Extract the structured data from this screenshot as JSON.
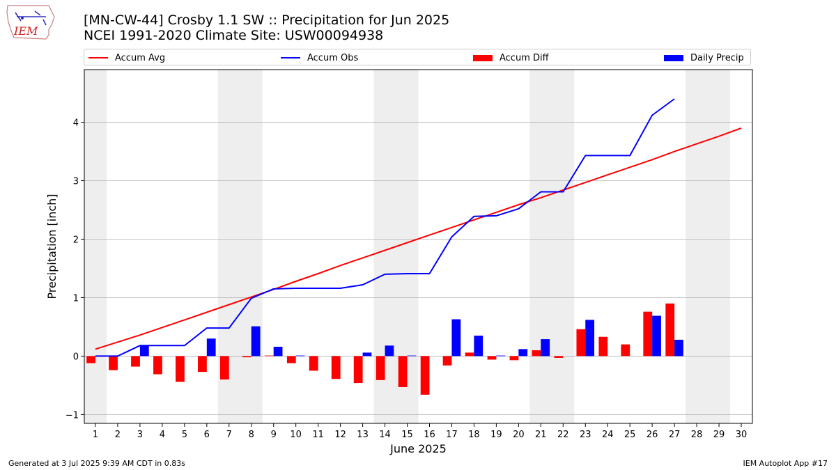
{
  "header": {
    "logo_text": "IEM",
    "title_line1": "[MN-CW-44] Crosby 1.1 SW :: Precipitation for Jun 2025",
    "title_line2": "NCEI 1991-2020 Climate Site: USW00094938"
  },
  "footer": {
    "generated": "Generated at 3 Jul 2025 9:39 AM CDT in 0.83s",
    "app": "IEM Autoplot App #17"
  },
  "colors": {
    "accum_avg": "#ff0000",
    "accum_obs": "#0000ff",
    "accum_diff": "#ff0000",
    "daily_precip": "#0000ff",
    "weekend_band": "#eeeeee",
    "grid": "#b0b0b0"
  },
  "chart_data": {
    "type": "bar",
    "title": "[MN-CW-44] Crosby 1.1 SW :: Precipitation for Jun 2025",
    "subtitle": "NCEI 1991-2020 Climate Site: USW00094938",
    "xlabel": "June 2025",
    "ylabel": "Precipitation [inch]",
    "xlim": [
      0.5,
      30.5
    ],
    "ylim": [
      -1.15,
      4.9
    ],
    "x_ticks": [
      1,
      2,
      3,
      4,
      5,
      6,
      7,
      8,
      9,
      10,
      11,
      12,
      13,
      14,
      15,
      16,
      17,
      18,
      19,
      20,
      21,
      22,
      23,
      24,
      25,
      26,
      27,
      28,
      29,
      30
    ],
    "y_ticks": [
      -1,
      0,
      1,
      2,
      3,
      4
    ],
    "grid": "horizontal",
    "legend_position": "top",
    "shaded_weekends": [
      [
        0.5,
        1.5
      ],
      [
        6.5,
        8.5
      ],
      [
        13.5,
        15.5
      ],
      [
        20.5,
        22.5
      ],
      [
        27.5,
        29.5
      ]
    ],
    "legend": [
      "Accum Avg",
      "Accum Obs",
      "Accum Diff",
      "Daily Precip"
    ],
    "series": [
      {
        "name": "Accum Avg",
        "kind": "line",
        "x": [
          1,
          2,
          3,
          4,
          5,
          6,
          7,
          8,
          9,
          10,
          11,
          12,
          13,
          14,
          15,
          16,
          17,
          18,
          19,
          20,
          21,
          22,
          23,
          24,
          25,
          26,
          27,
          28,
          29,
          30
        ],
        "values": [
          0.12,
          0.24,
          0.36,
          0.49,
          0.62,
          0.75,
          0.88,
          1.01,
          1.14,
          1.28,
          1.41,
          1.55,
          1.68,
          1.81,
          1.94,
          2.07,
          2.2,
          2.33,
          2.46,
          2.59,
          2.71,
          2.84,
          2.97,
          3.1,
          3.23,
          3.36,
          3.5,
          3.63,
          3.76,
          3.9
        ]
      },
      {
        "name": "Accum Obs",
        "kind": "line",
        "x": [
          1,
          2,
          3,
          4,
          5,
          6,
          7,
          8,
          9,
          10,
          11,
          12,
          13,
          14,
          15,
          16,
          17,
          18,
          19,
          20,
          21,
          22,
          23,
          24,
          25,
          26,
          27
        ],
        "values": [
          0.0,
          0.0,
          0.18,
          0.18,
          0.18,
          0.48,
          0.48,
          0.99,
          1.15,
          1.16,
          1.16,
          1.16,
          1.22,
          1.4,
          1.41,
          1.41,
          2.04,
          2.39,
          2.4,
          2.52,
          2.81,
          2.81,
          3.43,
          3.43,
          3.43,
          4.12,
          4.4
        ]
      },
      {
        "name": "Accum Diff",
        "kind": "bar",
        "x": [
          1,
          2,
          3,
          4,
          5,
          6,
          7,
          8,
          9,
          10,
          11,
          12,
          13,
          14,
          15,
          16,
          17,
          18,
          19,
          20,
          21,
          22,
          23,
          24,
          25,
          26,
          27
        ],
        "values": [
          -0.12,
          -0.24,
          -0.18,
          -0.31,
          -0.44,
          -0.27,
          -0.4,
          -0.02,
          0.01,
          -0.12,
          -0.25,
          -0.39,
          -0.46,
          -0.41,
          -0.53,
          -0.66,
          -0.16,
          0.06,
          -0.06,
          -0.07,
          0.1,
          -0.03,
          0.46,
          0.33,
          0.2,
          0.76,
          0.9
        ]
      },
      {
        "name": "Daily Precip",
        "kind": "bar",
        "x": [
          1,
          2,
          3,
          4,
          5,
          6,
          7,
          8,
          9,
          10,
          11,
          12,
          13,
          14,
          15,
          16,
          17,
          18,
          19,
          20,
          21,
          22,
          23,
          24,
          25,
          26,
          27
        ],
        "values": [
          0.0,
          0.0,
          0.18,
          0.0,
          0.0,
          0.3,
          0.0,
          0.51,
          0.16,
          0.01,
          0.0,
          0.0,
          0.06,
          0.18,
          0.01,
          0.0,
          0.63,
          0.35,
          0.01,
          0.12,
          0.29,
          0.0,
          0.62,
          0.0,
          0.0,
          0.69,
          0.28
        ]
      }
    ]
  }
}
